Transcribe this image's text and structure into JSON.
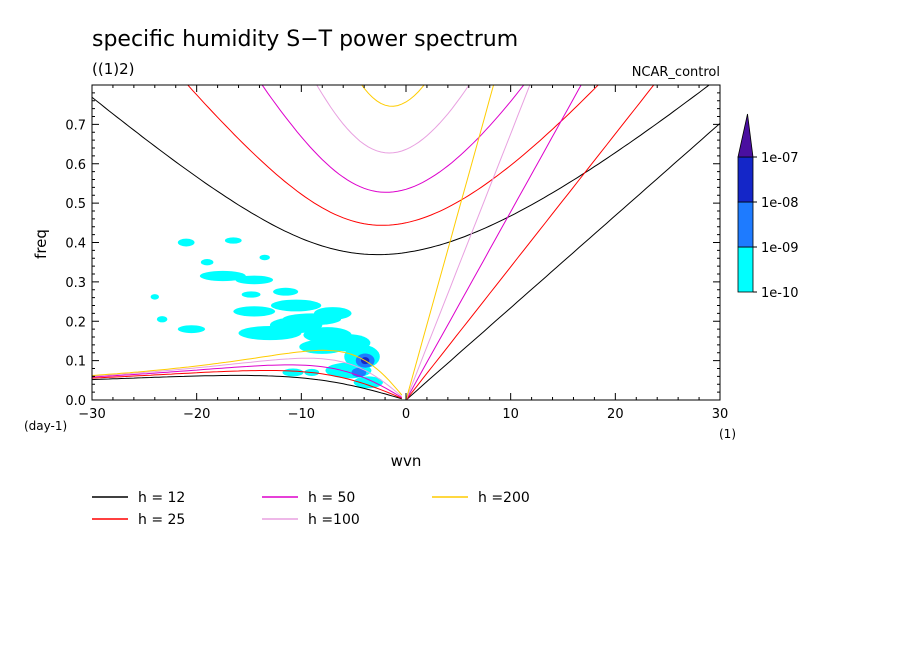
{
  "chart_data": {
    "type": "line",
    "title": "specific humidity S−T power spectrum",
    "subtitle": "((1)2)",
    "run_label": "NCAR_control",
    "xlabel": "wvn",
    "ylabel": "freq",
    "x_unit": "(1)",
    "y_unit": "(day-1)",
    "xlim": [
      -30,
      30
    ],
    "ylim": [
      0,
      0.8
    ],
    "x_ticks": [
      -30,
      -20,
      -10,
      0,
      10,
      20,
      30
    ],
    "x_tick_labels": [
      "−30",
      "−20",
      "−10",
      "0",
      "10",
      "20",
      "30"
    ],
    "y_ticks": [
      0,
      0.1,
      0.2,
      0.3,
      0.4,
      0.5,
      0.6,
      0.7
    ],
    "y_tick_labels": [
      "0.0",
      "0.1",
      "0.2",
      "0.3",
      "0.4",
      "0.5",
      "0.6",
      "0.7"
    ],
    "grid": false,
    "legend_position": "bottom",
    "series": [
      {
        "name": "h = 12",
        "h": 12,
        "color": "#000000"
      },
      {
        "name": "h = 25",
        "h": 25,
        "color": "#ff0000"
      },
      {
        "name": "h = 50",
        "h": 50,
        "color": "#dd00cc"
      },
      {
        "name": "h =100",
        "h": 100,
        "color": "#e8a0e0"
      },
      {
        "name": "h =200",
        "h": 200,
        "color": "#ffcc00"
      }
    ],
    "colorbar": {
      "labels": [
        "1e-10",
        "1e-09",
        "1e-08",
        "1e-07"
      ],
      "colors": [
        "#00ffff",
        "#1e7bff",
        "#1426c8",
        "#4a0fa0"
      ]
    },
    "contours": [
      {
        "level": "1e-10",
        "cx": -21,
        "cy": 0.4,
        "rx": 0.8,
        "ry": 0.01
      },
      {
        "level": "1e-10",
        "cx": -16.5,
        "cy": 0.405,
        "rx": 0.8,
        "ry": 0.008
      },
      {
        "level": "1e-10",
        "cx": -19,
        "cy": 0.35,
        "rx": 0.6,
        "ry": 0.008
      },
      {
        "level": "1e-10",
        "cx": -13.5,
        "cy": 0.362,
        "rx": 0.5,
        "ry": 0.007
      },
      {
        "level": "1e-10",
        "cx": -17.5,
        "cy": 0.315,
        "rx": 2.2,
        "ry": 0.013
      },
      {
        "level": "1e-10",
        "cx": -14.5,
        "cy": 0.305,
        "rx": 1.8,
        "ry": 0.011
      },
      {
        "level": "1e-10",
        "cx": -11.5,
        "cy": 0.275,
        "rx": 1.2,
        "ry": 0.01
      },
      {
        "level": "1e-10",
        "cx": -14.8,
        "cy": 0.268,
        "rx": 0.9,
        "ry": 0.008
      },
      {
        "level": "1e-10",
        "cx": -24,
        "cy": 0.262,
        "rx": 0.4,
        "ry": 0.007
      },
      {
        "level": "1e-10",
        "cx": -23.3,
        "cy": 0.205,
        "rx": 0.5,
        "ry": 0.008
      },
      {
        "level": "1e-10",
        "cx": -14.5,
        "cy": 0.225,
        "rx": 2.0,
        "ry": 0.013
      },
      {
        "level": "1e-10",
        "cx": -10.5,
        "cy": 0.24,
        "rx": 2.4,
        "ry": 0.015
      },
      {
        "level": "1e-10",
        "cx": -7,
        "cy": 0.22,
        "rx": 1.8,
        "ry": 0.016
      },
      {
        "level": "1e-10",
        "cx": -9,
        "cy": 0.205,
        "rx": 2.8,
        "ry": 0.015
      },
      {
        "level": "1e-10",
        "cx": -20.5,
        "cy": 0.18,
        "rx": 1.3,
        "ry": 0.01
      },
      {
        "level": "1e-10",
        "cx": -13,
        "cy": 0.17,
        "rx": 3.0,
        "ry": 0.018
      },
      {
        "level": "1e-10",
        "cx": -10.5,
        "cy": 0.19,
        "rx": 2.5,
        "ry": 0.02
      },
      {
        "level": "1e-10",
        "cx": -7.5,
        "cy": 0.165,
        "rx": 2.3,
        "ry": 0.02
      },
      {
        "level": "1e-10",
        "cx": -5.5,
        "cy": 0.145,
        "rx": 2.1,
        "ry": 0.022
      },
      {
        "level": "1e-10",
        "cx": -8,
        "cy": 0.135,
        "rx": 2.2,
        "ry": 0.018
      },
      {
        "level": "1e-10",
        "cx": -4.2,
        "cy": 0.11,
        "rx": 1.7,
        "ry": 0.03
      },
      {
        "level": "1e-10",
        "cx": -5.5,
        "cy": 0.075,
        "rx": 2.2,
        "ry": 0.02
      },
      {
        "level": "1e-10",
        "cx": -3.6,
        "cy": 0.045,
        "rx": 1.4,
        "ry": 0.015
      },
      {
        "level": "1e-10",
        "cx": -10.8,
        "cy": 0.07,
        "rx": 1.0,
        "ry": 0.01
      },
      {
        "level": "1e-10",
        "cx": -9,
        "cy": 0.07,
        "rx": 0.7,
        "ry": 0.009
      },
      {
        "level": "1e-09",
        "cx": -3.9,
        "cy": 0.1,
        "rx": 0.9,
        "ry": 0.018
      },
      {
        "level": "1e-09",
        "cx": -4.5,
        "cy": 0.07,
        "rx": 0.7,
        "ry": 0.012
      },
      {
        "level": "1e-08",
        "cx": -3.9,
        "cy": 0.1,
        "rx": 0.4,
        "ry": 0.009
      }
    ]
  }
}
